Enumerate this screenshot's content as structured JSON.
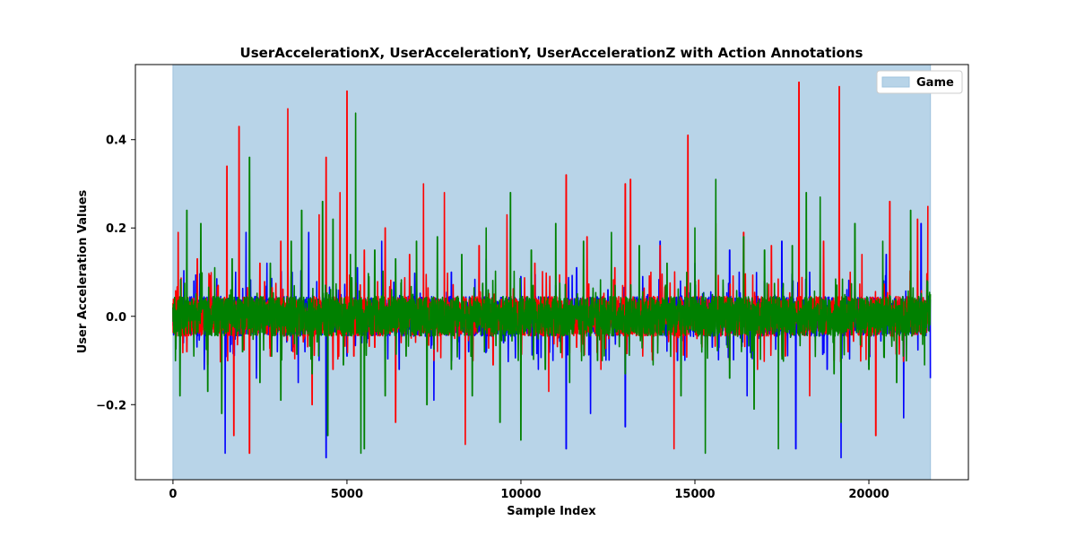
{
  "chart_data": {
    "type": "line",
    "title": "UserAccelerationX, UserAccelerationY, UserAccelerationZ with Action Annotations",
    "xlabel": "Sample Index",
    "ylabel": "User Acceleration Values",
    "xlim": [
      -1080,
      22860
    ],
    "ylim": [
      -0.37,
      0.57
    ],
    "xticks": [
      0,
      5000,
      10000,
      15000,
      20000
    ],
    "yticks": [
      -0.2,
      0.0,
      0.2,
      0.4
    ],
    "xtick_labels": [
      "0",
      "5000",
      "10000",
      "15000",
      "20000"
    ],
    "ytick_labels": [
      "−0.2",
      "0.0",
      "0.2",
      "0.4"
    ],
    "grid": false,
    "legend_position": "top-right",
    "annotations": [
      {
        "label": "Game",
        "x_start": 0,
        "x_end": 21770,
        "color": "#b8d4e8",
        "edge_color": "#9fc3de"
      }
    ],
    "series": [
      {
        "color": "#0000ff",
        "x": [
          0,
          300,
          600,
          900,
          1200,
          1500,
          1800,
          2100,
          2400,
          2700,
          3000,
          3300,
          3600,
          3900,
          4200,
          4400,
          4700,
          5000,
          5300,
          5600,
          6000,
          6500,
          7000,
          7500,
          8000,
          8500,
          9000,
          9500,
          10000,
          10500,
          11000,
          11300,
          11600,
          12000,
          12500,
          13000,
          13500,
          14000,
          14500,
          15000,
          15500,
          16000,
          16500,
          17000,
          17500,
          17900,
          18300,
          18800,
          19200,
          19600,
          20000,
          20500,
          21000,
          21500,
          21770
        ],
        "values": [
          0.02,
          -0.06,
          0.08,
          -0.12,
          0.05,
          -0.31,
          0.1,
          0.19,
          -0.14,
          0.12,
          -0.08,
          0.1,
          -0.15,
          0.19,
          -0.1,
          -0.32,
          0.06,
          -0.09,
          0.11,
          -0.05,
          0.17,
          -0.12,
          0.08,
          -0.19,
          0.1,
          -0.08,
          0.13,
          -0.06,
          0.09,
          -0.12,
          0.07,
          -0.3,
          0.11,
          -0.22,
          0.06,
          -0.25,
          0.09,
          0.17,
          -0.1,
          0.12,
          -0.07,
          0.15,
          -0.18,
          0.08,
          0.17,
          -0.3,
          0.1,
          -0.12,
          -0.32,
          0.09,
          -0.11,
          0.14,
          -0.23,
          0.21,
          -0.14
        ]
      },
      {
        "color": "#ff0000",
        "x": [
          0,
          150,
          400,
          700,
          1000,
          1300,
          1550,
          1750,
          1900,
          2200,
          2500,
          2800,
          3100,
          3300,
          3450,
          3700,
          4000,
          4200,
          4400,
          4600,
          4800,
          5000,
          5200,
          5500,
          5800,
          6100,
          6400,
          6800,
          7200,
          7500,
          7800,
          8100,
          8400,
          8800,
          9200,
          9600,
          10000,
          10400,
          10800,
          11300,
          11600,
          11900,
          12300,
          12700,
          13000,
          13150,
          13500,
          14000,
          14400,
          14800,
          15200,
          15600,
          16000,
          16400,
          16800,
          17200,
          17600,
          17990,
          18300,
          18700,
          19000,
          19150,
          19400,
          19800,
          20200,
          20600,
          21000,
          21400,
          21700
        ],
        "values": [
          0.03,
          0.19,
          -0.08,
          0.13,
          -0.11,
          0.07,
          0.34,
          -0.27,
          0.43,
          -0.31,
          0.12,
          -0.09,
          0.17,
          0.47,
          -0.08,
          0.11,
          -0.2,
          0.23,
          0.36,
          -0.12,
          0.28,
          0.51,
          -0.09,
          0.15,
          -0.07,
          0.2,
          -0.24,
          0.14,
          0.3,
          -0.1,
          0.28,
          -0.05,
          -0.29,
          0.16,
          -0.11,
          0.23,
          -0.08,
          0.12,
          -0.17,
          0.32,
          -0.07,
          0.18,
          -0.12,
          0.11,
          0.3,
          0.31,
          -0.09,
          0.16,
          -0.3,
          0.41,
          -0.07,
          0.21,
          -0.1,
          0.19,
          -0.12,
          0.16,
          -0.09,
          0.53,
          -0.18,
          0.17,
          -0.1,
          0.52,
          -0.08,
          0.14,
          -0.27,
          0.26,
          -0.1,
          0.22,
          0.25
        ]
      },
      {
        "color": "#008000",
        "x": [
          0,
          200,
          400,
          600,
          800,
          1000,
          1200,
          1400,
          1700,
          2000,
          2200,
          2500,
          2800,
          3100,
          3400,
          3700,
          4000,
          4300,
          4450,
          4600,
          4900,
          5100,
          5250,
          5400,
          5500,
          5800,
          6100,
          6400,
          6700,
          7000,
          7300,
          7600,
          8000,
          8300,
          8600,
          9000,
          9400,
          9700,
          10000,
          10300,
          10700,
          11000,
          11400,
          11800,
          12200,
          12600,
          13000,
          13400,
          13800,
          14200,
          14600,
          15000,
          15300,
          15600,
          16000,
          16400,
          16700,
          17000,
          17400,
          17800,
          18200,
          18600,
          19000,
          19200,
          19600,
          20000,
          20400,
          20800,
          21200,
          21600,
          21770
        ],
        "values": [
          0.02,
          -0.18,
          0.24,
          -0.09,
          0.21,
          -0.17,
          0.11,
          -0.22,
          0.13,
          -0.08,
          0.36,
          -0.15,
          0.12,
          -0.19,
          0.17,
          0.24,
          -0.13,
          0.26,
          -0.27,
          0.22,
          -0.11,
          0.14,
          0.46,
          -0.31,
          -0.3,
          0.15,
          -0.18,
          0.13,
          -0.09,
          0.17,
          -0.2,
          0.18,
          -0.12,
          0.14,
          -0.18,
          0.2,
          -0.24,
          0.28,
          -0.28,
          0.15,
          -0.12,
          0.21,
          -0.15,
          0.17,
          -0.1,
          0.19,
          -0.13,
          0.16,
          -0.11,
          0.12,
          -0.18,
          0.2,
          -0.31,
          0.31,
          -0.14,
          0.18,
          -0.21,
          0.15,
          -0.3,
          0.16,
          0.28,
          0.27,
          -0.13,
          -0.24,
          0.21,
          -0.12,
          0.17,
          -0.15,
          0.24,
          -0.11,
          0.05
        ]
      }
    ]
  }
}
